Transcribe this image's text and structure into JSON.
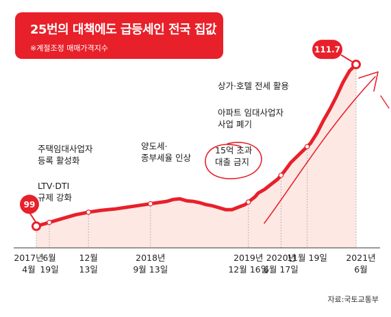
{
  "title": "25번의 대책에도 급등세인 전국 집값",
  "subtitle": "※계절조정 매매가격지수",
  "source": "자료:국토교통부",
  "colors": {
    "accent": "#e8202a",
    "area": "#fde8e4",
    "dot": "#ffffff"
  },
  "chart_data": {
    "type": "line",
    "series": [
      {
        "values": [
          [
            0,
            99.0
          ],
          [
            2,
            99.3
          ],
          [
            4,
            99.6
          ],
          [
            6,
            99.9
          ],
          [
            8,
            100.1
          ],
          [
            10,
            100.25
          ],
          [
            12,
            100.35
          ],
          [
            14,
            100.5
          ],
          [
            16,
            100.65
          ],
          [
            18,
            100.8
          ],
          [
            20,
            100.95
          ],
          [
            21,
            101.1
          ],
          [
            22,
            101.15
          ],
          [
            23,
            101.0
          ],
          [
            24,
            100.95
          ],
          [
            25,
            100.85
          ],
          [
            26,
            100.7
          ],
          [
            27,
            100.6
          ],
          [
            28,
            100.45
          ],
          [
            29,
            100.3
          ],
          [
            30,
            100.3
          ],
          [
            31,
            100.5
          ],
          [
            32,
            100.7
          ],
          [
            32.5,
            100.9
          ],
          [
            33,
            101.1
          ],
          [
            33.5,
            101.3
          ],
          [
            34,
            101.6
          ],
          [
            35,
            101.9
          ],
          [
            36,
            102.3
          ],
          [
            37,
            102.7
          ],
          [
            37.5,
            103.0
          ],
          [
            38,
            103.3
          ],
          [
            39,
            104.0
          ],
          [
            40,
            104.5
          ],
          [
            41,
            105.0
          ],
          [
            42,
            105.5
          ],
          [
            43,
            106.3
          ],
          [
            44,
            107.3
          ],
          [
            45,
            108.2
          ],
          [
            46,
            109.2
          ],
          [
            47,
            110.3
          ],
          [
            48,
            111.2
          ],
          [
            49,
            111.7
          ]
        ]
      }
    ],
    "start_value": "99",
    "end_value": "111.7",
    "x_ticks": [
      {
        "x": 0,
        "l1": "2017년",
        "l2": "4월"
      },
      {
        "x": 2,
        "l1": "6월",
        "l2": "19일"
      },
      {
        "x": 8,
        "l1": "12월",
        "l2": "13일"
      },
      {
        "x": 17.5,
        "l1": "2018년",
        "l2": "9월 13일"
      },
      {
        "x": 32.5,
        "l1": "2019년",
        "l2": "12월 16일"
      },
      {
        "x": 37.5,
        "l1": "2020년",
        "l2": "6월 17일"
      },
      {
        "x": 41.5,
        "l1": "11월 19일",
        "l2": ""
      },
      {
        "x": 49,
        "l1": "2021년",
        "l2": "6월"
      }
    ],
    "markers": [
      0,
      2,
      8,
      17.5,
      32.5,
      37.5,
      41.5,
      49
    ],
    "annotations": [
      {
        "x": 2,
        "lines": [
          "LTV·DTI",
          "규제 강화"
        ]
      },
      {
        "x": 2,
        "lines": [
          "주택임대사업자",
          "등록 활성화"
        ]
      },
      {
        "x": 17.5,
        "lines": [
          "양도세·",
          "종부세율 인상"
        ]
      },
      {
        "x": 32.5,
        "lines": [
          "15억 초과",
          "대출 금지"
        ]
      },
      {
        "x": 37.5,
        "lines": [
          "아파트 임대사업자",
          "사업 폐기"
        ]
      },
      {
        "x": 41.5,
        "lines": [
          "상가·호텔 전세 활용"
        ]
      }
    ],
    "xlim": [
      0,
      49
    ],
    "ylim": [
      98,
      113
    ],
    "grid": false
  }
}
